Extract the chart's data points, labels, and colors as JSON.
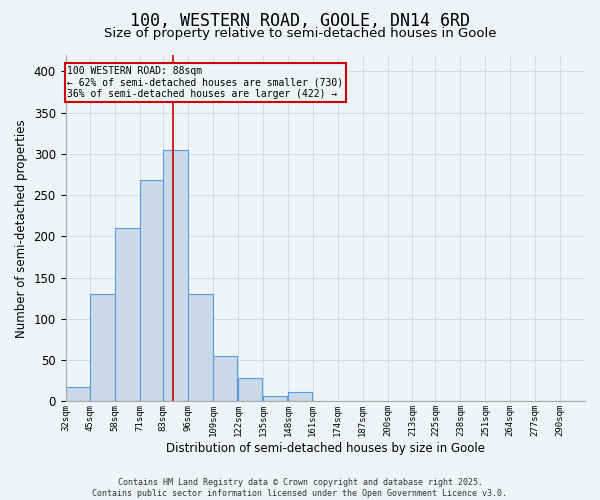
{
  "title1": "100, WESTERN ROAD, GOOLE, DN14 6RD",
  "title2": "Size of property relative to semi-detached houses in Goole",
  "xlabel": "Distribution of semi-detached houses by size in Goole",
  "ylabel": "Number of semi-detached properties",
  "categories": [
    "32sqm",
    "45sqm",
    "58sqm",
    "71sqm",
    "83sqm",
    "96sqm",
    "109sqm",
    "122sqm",
    "135sqm",
    "148sqm",
    "161sqm",
    "174sqm",
    "187sqm",
    "200sqm",
    "213sqm",
    "225sqm",
    "238sqm",
    "251sqm",
    "264sqm",
    "277sqm",
    "290sqm"
  ],
  "bar_heights": [
    18,
    130,
    210,
    268,
    305,
    130,
    55,
    28,
    7,
    11,
    0,
    0,
    0,
    0,
    0,
    0,
    0,
    0,
    0,
    0,
    0
  ],
  "bar_color": "#c9d9e8",
  "bar_edge_color": "#5b9bd5",
  "grid_color": "#c8d8ea",
  "background_color": "#eef3f8",
  "annotation_text": "100 WESTERN ROAD: 88sqm\n← 62% of semi-detached houses are smaller (730)\n36% of semi-detached houses are larger (422) →",
  "annotation_box_color": "#cc0000",
  "property_line_x": 88,
  "property_line_color": "#cc0000",
  "bin_width": 13,
  "bin_starts": [
    32,
    45,
    58,
    71,
    83,
    96,
    109,
    122,
    135,
    148,
    161,
    174,
    187,
    200,
    213,
    225,
    238,
    251,
    264,
    277,
    290
  ],
  "ylim": [
    0,
    420
  ],
  "yticks": [
    0,
    50,
    100,
    150,
    200,
    250,
    300,
    350,
    400
  ],
  "footer_text": "Contains HM Land Registry data © Crown copyright and database right 2025.\nContains public sector information licensed under the Open Government Licence v3.0.",
  "title1_fontsize": 12,
  "title2_fontsize": 9.5
}
